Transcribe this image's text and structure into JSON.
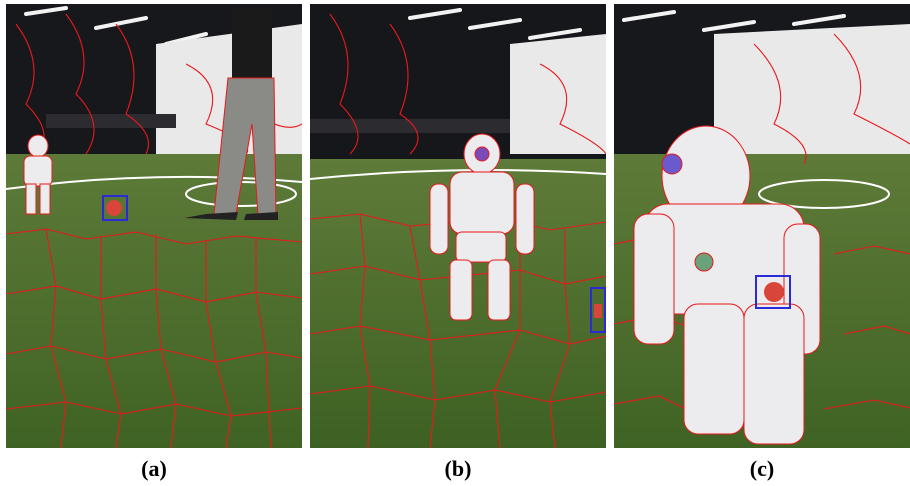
{
  "figure": {
    "panels": [
      {
        "caption": "(a)",
        "detection_box_color": "#2a2ad8"
      },
      {
        "caption": "(b)",
        "detection_box_color": "#2a2ad8"
      },
      {
        "caption": "(c)",
        "detection_box_color": "#2a2ad8"
      }
    ],
    "colors": {
      "superpixel_boundary": "#e8191b",
      "field_green": "#4a6b2a",
      "background_dark": "#15161a",
      "robot_white": "#ecebee",
      "ball_red": "#d8453a"
    }
  }
}
